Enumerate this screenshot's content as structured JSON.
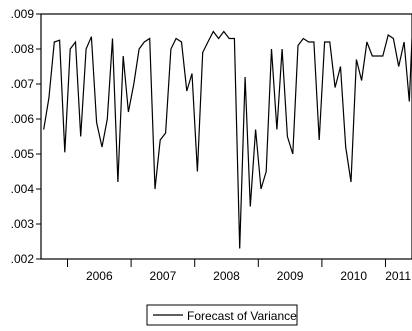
{
  "chart_data": {
    "type": "line",
    "title": "",
    "xlabel": "",
    "ylabel": "",
    "xlim": [
      2005.583,
      2011.417
    ],
    "ylim": [
      0.002,
      0.009
    ],
    "y_ticks": [
      0.002,
      0.003,
      0.004,
      0.005,
      0.006,
      0.007,
      0.008,
      0.009
    ],
    "y_tick_labels": [
      ".002",
      ".003",
      ".004",
      ".005",
      ".006",
      ".007",
      ".008",
      ".009"
    ],
    "x_tick_labels": [
      "2006",
      "2007",
      "2008",
      "2009",
      "2010",
      "2011"
    ],
    "x_tick_centers": [
      2006.5,
      2007.5,
      2008.5,
      2009.5,
      2010.5,
      2011.5
    ],
    "grid": false,
    "legend_position": "bottom-center",
    "line_color": "#000000",
    "series": [
      {
        "name": "Forecast of Variance",
        "x": [
          2005.625,
          2005.708,
          2005.792,
          2005.875,
          2005.958,
          2006.042,
          2006.125,
          2006.208,
          2006.292,
          2006.375,
          2006.458,
          2006.542,
          2006.625,
          2006.708,
          2006.792,
          2006.875,
          2006.958,
          2007.042,
          2007.125,
          2007.208,
          2007.292,
          2007.375,
          2007.458,
          2007.542,
          2007.625,
          2007.708,
          2007.792,
          2007.875,
          2007.958,
          2008.042,
          2008.125,
          2008.208,
          2008.292,
          2008.375,
          2008.458,
          2008.542,
          2008.625,
          2008.708,
          2008.792,
          2008.875,
          2008.958,
          2009.042,
          2009.125,
          2009.208,
          2009.292,
          2009.375,
          2009.458,
          2009.542,
          2009.625,
          2009.708,
          2009.792,
          2009.875,
          2009.958,
          2010.042,
          2010.125,
          2010.208,
          2010.292,
          2010.375,
          2010.458,
          2010.542,
          2010.625,
          2010.708,
          2010.792,
          2010.875,
          2010.958,
          2011.042,
          2011.125,
          2011.208,
          2011.292,
          2011.375,
          2011.417
        ],
        "y": [
          0.0057,
          0.0066,
          0.0082,
          0.00825,
          0.00505,
          0.008,
          0.0082,
          0.0055,
          0.008,
          0.00835,
          0.0059,
          0.0052,
          0.006,
          0.0083,
          0.0042,
          0.0078,
          0.0062,
          0.007,
          0.008,
          0.0082,
          0.0083,
          0.004,
          0.0054,
          0.0056,
          0.008,
          0.0083,
          0.0082,
          0.0068,
          0.0073,
          0.0045,
          0.0079,
          0.0082,
          0.0085,
          0.0083,
          0.0085,
          0.0083,
          0.0083,
          0.0023,
          0.0072,
          0.0035,
          0.0057,
          0.004,
          0.0045,
          0.008,
          0.0057,
          0.008,
          0.0055,
          0.005,
          0.0081,
          0.0083,
          0.0082,
          0.0082,
          0.0054,
          0.0082,
          0.0082,
          0.0069,
          0.0075,
          0.0052,
          0.0042,
          0.0077,
          0.0071,
          0.0082,
          0.0078,
          0.0078,
          0.0078,
          0.0084,
          0.0083,
          0.0075,
          0.0082,
          0.0065,
          0.0083
        ]
      }
    ]
  }
}
